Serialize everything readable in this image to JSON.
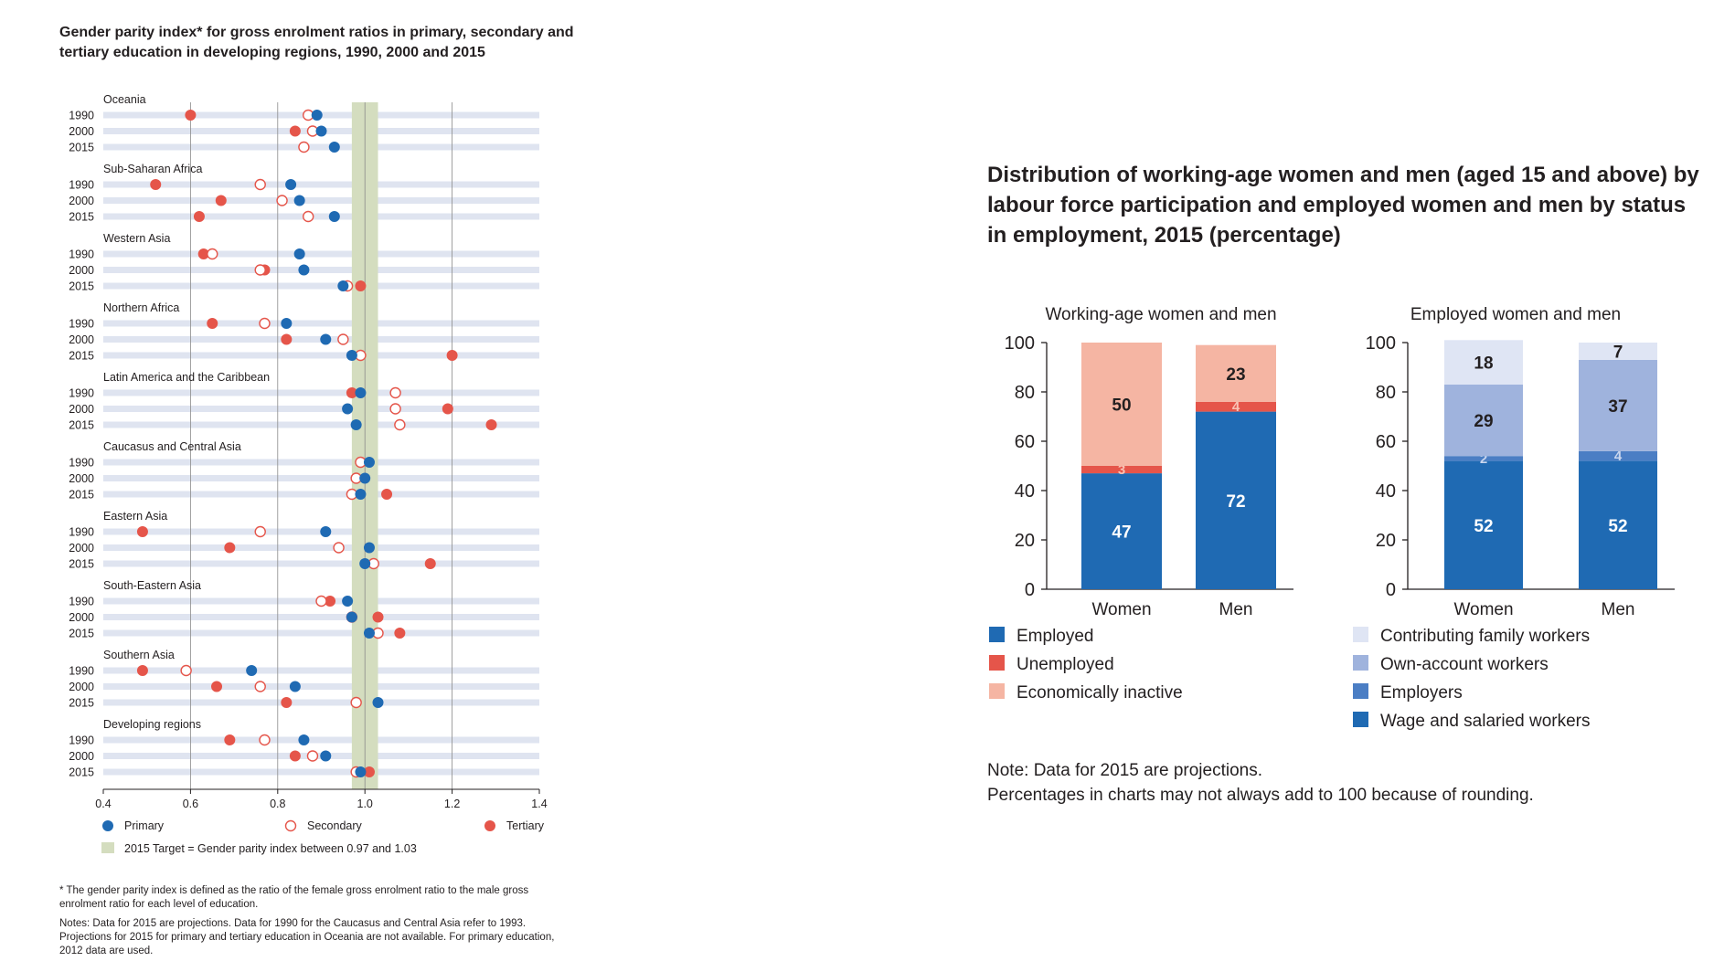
{
  "left": {
    "title": "Gender parity index* for gross enrolment ratios in primary, secondary and tertiary education in developing regions, 1990, 2000 and 2015",
    "footnote": "* The gender parity index is defined as the ratio of the female gross enrolment ratio to the male gross enrolment ratio for each level of education.",
    "notes": "Notes: Data for 2015 are projections. Data for 1990 for the Caucasus and Central Asia refer to 1993. Projections for 2015 for primary and tertiary education in Oceania are not available. For primary education, 2012 data are used."
  },
  "right": {
    "title": "Distribution of working-age women and men (aged 15 and above) by labour force participation and employed women and men by status in employment, 2015 (percentage)",
    "note_line1": "Note: Data for 2015 are projections.",
    "note_line2": "Percentages in charts may not always add to 100 because of rounding."
  },
  "chart_data": [
    {
      "type": "scatter",
      "xlim": [
        0.4,
        1.4
      ],
      "x_ticks": [
        "0.4",
        "0.6",
        "0.8",
        "1.0",
        "1.2",
        "1.4"
      ],
      "target_band": [
        0.97,
        1.03
      ],
      "target_label": "2015 Target = Gender parity index between 0.97 and 1.03",
      "colors": {
        "primary": "#1f6ab3",
        "secondary": "#e5554a",
        "tertiary": "#e5554a",
        "band": "#d4ddbf",
        "row": "#dfe4f0"
      },
      "series_names": [
        "Primary",
        "Secondary",
        "Tertiary"
      ],
      "regions": [
        {
          "name": "Oceania",
          "rows": [
            {
              "year": "1990",
              "primary": 0.89,
              "secondary": 0.87,
              "tertiary": 0.6
            },
            {
              "year": "2000",
              "primary": 0.9,
              "secondary": 0.88,
              "tertiary": 0.84
            },
            {
              "year": "2015",
              "primary": 0.93,
              "secondary": 0.86,
              "tertiary": null
            }
          ]
        },
        {
          "name": "Sub-Saharan Africa",
          "rows": [
            {
              "year": "1990",
              "primary": 0.83,
              "secondary": 0.76,
              "tertiary": 0.52
            },
            {
              "year": "2000",
              "primary": 0.85,
              "secondary": 0.81,
              "tertiary": 0.67
            },
            {
              "year": "2015",
              "primary": 0.93,
              "secondary": 0.87,
              "tertiary": 0.62
            }
          ]
        },
        {
          "name": "Western Asia",
          "rows": [
            {
              "year": "1990",
              "primary": 0.85,
              "secondary": 0.65,
              "tertiary": 0.63
            },
            {
              "year": "2000",
              "primary": 0.86,
              "secondary": 0.76,
              "tertiary": 0.77
            },
            {
              "year": "2015",
              "primary": 0.95,
              "secondary": 0.96,
              "tertiary": 0.99
            }
          ]
        },
        {
          "name": "Northern Africa",
          "rows": [
            {
              "year": "1990",
              "primary": 0.82,
              "secondary": 0.77,
              "tertiary": 0.65
            },
            {
              "year": "2000",
              "primary": 0.91,
              "secondary": 0.95,
              "tertiary": 0.82
            },
            {
              "year": "2015",
              "primary": 0.97,
              "secondary": 0.99,
              "tertiary": 1.2
            }
          ]
        },
        {
          "name": "Latin America and the Caribbean",
          "rows": [
            {
              "year": "1990",
              "primary": 0.99,
              "secondary": 1.07,
              "tertiary": 0.97
            },
            {
              "year": "2000",
              "primary": 0.96,
              "secondary": 1.07,
              "tertiary": 1.19
            },
            {
              "year": "2015",
              "primary": 0.98,
              "secondary": 1.08,
              "tertiary": 1.29
            }
          ]
        },
        {
          "name": "Caucasus and Central Asia",
          "rows": [
            {
              "year": "1990",
              "primary": 1.01,
              "secondary": 0.99,
              "tertiary": 0.99
            },
            {
              "year": "2000",
              "primary": 1.0,
              "secondary": 0.98,
              "tertiary": 0.98
            },
            {
              "year": "2015",
              "primary": 0.99,
              "secondary": 0.97,
              "tertiary": 1.05
            }
          ]
        },
        {
          "name": "Eastern Asia",
          "rows": [
            {
              "year": "1990",
              "primary": 0.91,
              "secondary": 0.76,
              "tertiary": 0.49
            },
            {
              "year": "2000",
              "primary": 1.01,
              "secondary": 0.94,
              "tertiary": 0.69
            },
            {
              "year": "2015",
              "primary": 1.0,
              "secondary": 1.02,
              "tertiary": 1.15
            }
          ]
        },
        {
          "name": "South-Eastern Asia",
          "rows": [
            {
              "year": "1990",
              "primary": 0.96,
              "secondary": 0.9,
              "tertiary": 0.92
            },
            {
              "year": "2000",
              "primary": 0.97,
              "secondary": 0.97,
              "tertiary": 1.03
            },
            {
              "year": "2015",
              "primary": 1.01,
              "secondary": 1.03,
              "tertiary": 1.08
            }
          ]
        },
        {
          "name": "Southern Asia",
          "rows": [
            {
              "year": "1990",
              "primary": 0.74,
              "secondary": 0.59,
              "tertiary": 0.49
            },
            {
              "year": "2000",
              "primary": 0.84,
              "secondary": 0.76,
              "tertiary": 0.66
            },
            {
              "year": "2015",
              "primary": 1.03,
              "secondary": 0.98,
              "tertiary": 0.82
            }
          ]
        },
        {
          "name": "Developing regions",
          "rows": [
            {
              "year": "1990",
              "primary": 0.86,
              "secondary": 0.77,
              "tertiary": 0.69
            },
            {
              "year": "2000",
              "primary": 0.91,
              "secondary": 0.88,
              "tertiary": 0.84
            },
            {
              "year": "2015",
              "primary": 0.99,
              "secondary": 0.98,
              "tertiary": 1.01
            }
          ]
        }
      ]
    },
    {
      "type": "bar",
      "stacked": true,
      "title": "Working-age women and men",
      "categories": [
        "Women",
        "Men"
      ],
      "ylim": [
        0,
        100
      ],
      "y_ticks": [
        "0",
        "20",
        "40",
        "60",
        "80",
        "100"
      ],
      "series": [
        {
          "name": "Employed",
          "color": "#1f6ab3",
          "values": [
            47,
            72
          ],
          "label_color": "#ffffff"
        },
        {
          "name": "Unemployed",
          "color": "#e5554a",
          "values": [
            3,
            4
          ],
          "label_color": "#f8c3b5"
        },
        {
          "name": "Economically inactive",
          "color": "#f5b5a3",
          "values": [
            50,
            23
          ],
          "label_color": "#231f20"
        }
      ]
    },
    {
      "type": "bar",
      "stacked": true,
      "title": "Employed women and men",
      "categories": [
        "Women",
        "Men"
      ],
      "ylim": [
        0,
        100
      ],
      "y_ticks": [
        "0",
        "20",
        "40",
        "60",
        "80",
        "100"
      ],
      "series": [
        {
          "name": "Wage and salaried workers",
          "color": "#1f6ab3",
          "values": [
            52,
            52
          ],
          "label_color": "#ffffff"
        },
        {
          "name": "Employers",
          "color": "#4b7ec4",
          "values": [
            2,
            4
          ],
          "label_color": "#c9d6ee"
        },
        {
          "name": "Own-account workers",
          "color": "#9fb3dd",
          "values": [
            29,
            37
          ],
          "label_color": "#231f20"
        },
        {
          "name": "Contributing family workers",
          "color": "#dfe5f4",
          "values": [
            18,
            7
          ],
          "label_color": "#231f20"
        }
      ]
    }
  ],
  "legend_right": {
    "left": [
      "Employed",
      "Unemployed",
      "Economically inactive"
    ],
    "left_colors": [
      "#1f6ab3",
      "#e5554a",
      "#f5b5a3"
    ],
    "right": [
      "Contributing family workers",
      "Own-account workers",
      "Employers",
      "Wage and salaried workers"
    ],
    "right_colors": [
      "#dfe5f4",
      "#9fb3dd",
      "#4b7ec4",
      "#1f6ab3"
    ]
  }
}
